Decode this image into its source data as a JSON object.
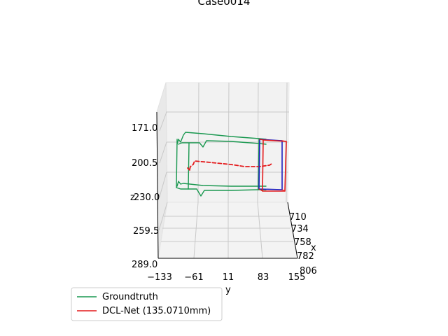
{
  "chart_data": {
    "type": "line3d",
    "title": "Case0014",
    "xlabel": "x",
    "ylabel": "y",
    "zlabel": "z",
    "x_ticks": [
      "710",
      "734",
      "758",
      "782",
      "806"
    ],
    "y_ticks": [
      "−133",
      "−61",
      "11",
      "83",
      "155"
    ],
    "z_ticks": [
      "171.0",
      "200.5",
      "230.0",
      "259.5",
      "289.0"
    ],
    "xlim": [
      710,
      806
    ],
    "ylim": [
      -133,
      155
    ],
    "zlim": [
      171.0,
      289.0
    ],
    "grid": true,
    "legend_position": "lower-left",
    "series": [
      {
        "name": "Groundtruth",
        "color": "#1a9850",
        "style": "solid"
      },
      {
        "name": "DCL-Net (135.0710mm)",
        "color": "#e41a1c",
        "style": "solid"
      },
      {
        "color": "#e41a1c",
        "style": "dashed"
      },
      {
        "color": "#1f1fbf",
        "style": "solid"
      }
    ]
  }
}
